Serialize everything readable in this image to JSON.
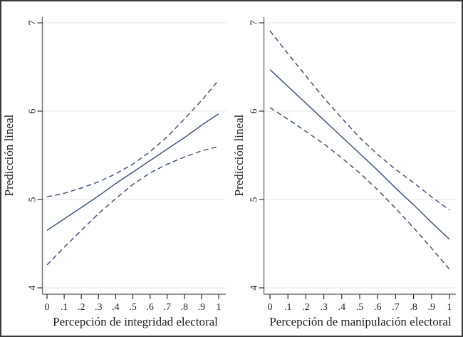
{
  "figure": {
    "background": "#ffffff",
    "border_color": "#3a3a3a"
  },
  "style": {
    "grid_color": "#ebebeb",
    "axis_color": "#6e6e6e",
    "tick_color": "#2e2e2e",
    "text_color": "#1c1c1c"
  },
  "chart_data": [
    {
      "type": "line",
      "title": "",
      "xlabel": "Percepción de integridad electoral",
      "ylabel": "Predicción lineal",
      "x": [
        0,
        0.1,
        0.2,
        0.3,
        0.4,
        0.5,
        0.6,
        0.7,
        0.8,
        0.9,
        1
      ],
      "xtick_labels": [
        "0",
        ".1",
        ".2",
        ".3",
        ".4",
        ".5",
        ".6",
        ".7",
        ".8",
        ".9",
        "1"
      ],
      "xlim": [
        0,
        1
      ],
      "ylim": [
        4,
        7
      ],
      "yticks": [
        4,
        5,
        6,
        7
      ],
      "ytick_labels": [
        "4",
        "5",
        "6",
        "7"
      ],
      "grid": true,
      "legend": "none",
      "line_color": "#3f5579",
      "series": [
        {
          "name": "linear-prediction",
          "style": "solid",
          "values": [
            4.65,
            4.78,
            4.91,
            5.04,
            5.18,
            5.31,
            5.44,
            5.57,
            5.7,
            5.84,
            5.97
          ]
        },
        {
          "name": "ci-upper",
          "style": "dashed",
          "values": [
            5.03,
            5.07,
            5.13,
            5.2,
            5.29,
            5.4,
            5.54,
            5.71,
            5.91,
            6.12,
            6.35
          ]
        },
        {
          "name": "ci-lower",
          "style": "dashed",
          "values": [
            4.26,
            4.46,
            4.65,
            4.84,
            5.01,
            5.17,
            5.3,
            5.4,
            5.48,
            5.55,
            5.6
          ]
        }
      ]
    },
    {
      "type": "line",
      "title": "",
      "xlabel": "Percepción de manipulación electoral",
      "ylabel": "Predicción lineal",
      "x": [
        0,
        0.1,
        0.2,
        0.3,
        0.4,
        0.5,
        0.6,
        0.7,
        0.8,
        0.9,
        1
      ],
      "xtick_labels": [
        "0",
        ".1",
        ".2",
        ".3",
        ".4",
        ".5",
        ".6",
        ".7",
        ".8",
        ".9",
        "1"
      ],
      "xlim": [
        0,
        1
      ],
      "ylim": [
        4,
        7
      ],
      "yticks": [
        4,
        5,
        6,
        7
      ],
      "ytick_labels": [
        "4",
        "5",
        "6",
        "7"
      ],
      "grid": true,
      "legend": "none",
      "line_color": "#3f5579",
      "series": [
        {
          "name": "linear-prediction",
          "style": "solid",
          "values": [
            6.47,
            6.28,
            6.09,
            5.9,
            5.71,
            5.52,
            5.33,
            5.13,
            4.94,
            4.74,
            4.55
          ]
        },
        {
          "name": "ci-upper",
          "style": "dashed",
          "values": [
            6.91,
            6.65,
            6.4,
            6.15,
            5.92,
            5.7,
            5.51,
            5.34,
            5.19,
            5.03,
            4.88
          ]
        },
        {
          "name": "ci-lower",
          "style": "dashed",
          "values": [
            6.04,
            5.91,
            5.77,
            5.63,
            5.47,
            5.3,
            5.11,
            4.9,
            4.68,
            4.45,
            4.21
          ]
        }
      ]
    }
  ]
}
